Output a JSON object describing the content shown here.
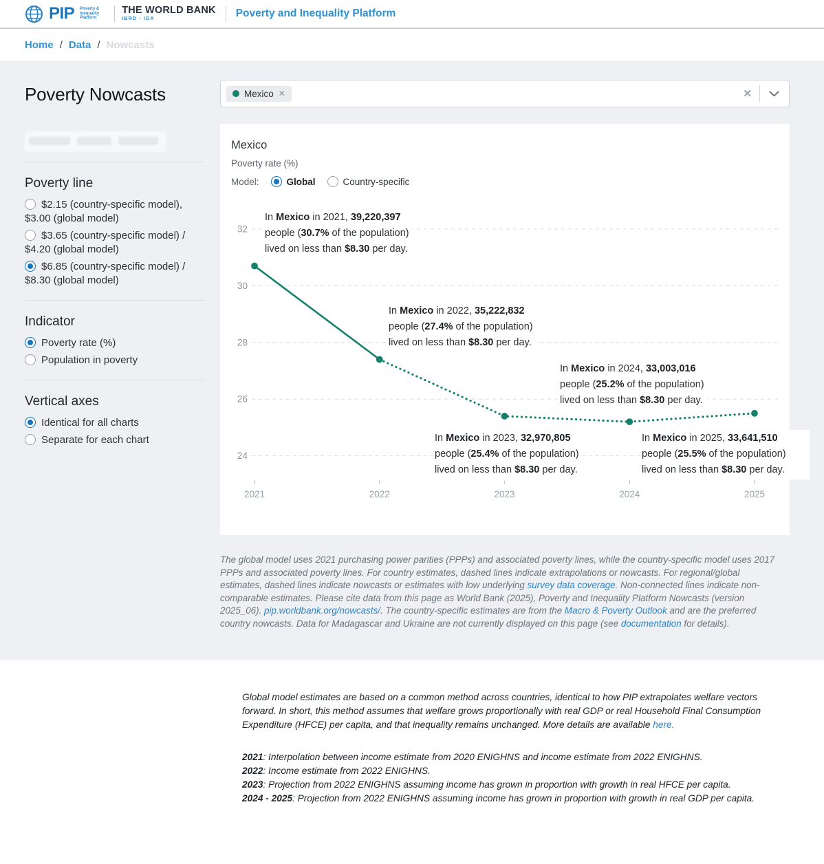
{
  "colors": {
    "accent_blue": "#1676bc",
    "link_blue": "#2e86c9",
    "teal": "#15806b",
    "page_bg": "#eef0f3"
  },
  "header": {
    "pip_logo": "PIP",
    "pip_micro": "Poverty & Inequality Platform",
    "world_bank": "THE WORLD BANK",
    "world_bank_sub": "IBRD - IDA",
    "platform_title": "Poverty and Inequality Platform"
  },
  "breadcrumb": {
    "items": [
      "Home",
      "Data"
    ],
    "separator": "/",
    "current": "Nowcasts"
  },
  "sidebar": {
    "title": "Poverty Nowcasts",
    "poverty_line": {
      "heading": "Poverty line",
      "options": [
        {
          "label": "$2.15 (country-specific model), $3.00 (global model)",
          "selected": false
        },
        {
          "label": "$3.65 (country-specific model) / $4.20 (global model)",
          "selected": false
        },
        {
          "label": "$6.85 (country-specific model) / $8.30 (global model)",
          "selected": true
        }
      ]
    },
    "indicator": {
      "heading": "Indicator",
      "options": [
        {
          "label": "Poverty rate (%)",
          "selected": true
        },
        {
          "label": "Population in poverty",
          "selected": false
        }
      ]
    },
    "vertical_axes": {
      "heading": "Vertical axes",
      "options": [
        {
          "label": "Identical for all charts",
          "selected": true
        },
        {
          "label": "Separate for each chart",
          "selected": false
        }
      ]
    }
  },
  "selector": {
    "tag": "Mexico",
    "tag_remove": "✕",
    "clear": "✕"
  },
  "chart_panel": {
    "title": "Mexico",
    "subtitle": "Poverty rate (%)",
    "model_label": "Model:",
    "model_options": [
      {
        "label": "Global",
        "selected": true
      },
      {
        "label": "Country-specific",
        "selected": false
      }
    ]
  },
  "chart_data": {
    "type": "line",
    "title": "Mexico",
    "ylabel": "Poverty rate (%)",
    "xlabel": "",
    "x": [
      2021,
      2022,
      2023,
      2024,
      2025
    ],
    "series": [
      {
        "name": "Mexico — global model",
        "values": [
          30.7,
          27.4,
          25.4,
          25.2,
          25.5
        ],
        "solid_segments": 1,
        "dashed_from": 2022
      }
    ],
    "yticks": [
      32,
      30,
      28,
      26,
      24
    ],
    "ylim": [
      23.2,
      32.6
    ],
    "grid": "dashed-horizontal",
    "legend_position": "none",
    "line_color": "#15806b",
    "annotations": [
      {
        "year": "2021",
        "people": "39,220,397",
        "percent": "30.7%",
        "threshold": "$8.30",
        "lines": [
          [
            {
              "t": "In "
            },
            {
              "t": "Mexico",
              "b": 1
            },
            {
              "t": " in 2021, "
            },
            {
              "t": "39,220,397",
              "b": 1
            }
          ],
          [
            {
              "t": "people ("
            },
            {
              "t": "30.7%",
              "b": 1
            },
            {
              "t": " of the population)"
            }
          ],
          [
            {
              "t": "lived on less than "
            },
            {
              "t": "$8.30",
              "b": 1
            },
            {
              "t": " per day."
            }
          ]
        ]
      },
      {
        "year": "2022",
        "people": "35,222,832",
        "percent": "27.4%",
        "threshold": "$8.30",
        "lines": [
          [
            {
              "t": "In "
            },
            {
              "t": "Mexico",
              "b": 1
            },
            {
              "t": " in 2022, "
            },
            {
              "t": "35,222,832",
              "b": 1
            }
          ],
          [
            {
              "t": "people ("
            },
            {
              "t": "27.4%",
              "b": 1
            },
            {
              "t": " of the population)"
            }
          ],
          [
            {
              "t": "lived on less than "
            },
            {
              "t": "$8.30",
              "b": 1
            },
            {
              "t": " per day."
            }
          ]
        ]
      },
      {
        "year": "2024",
        "people": "33,003,016",
        "percent": "25.2%",
        "threshold": "$8.30",
        "lines": [
          [
            {
              "t": "In "
            },
            {
              "t": "Mexico",
              "b": 1
            },
            {
              "t": " in 2024, "
            },
            {
              "t": "33,003,016",
              "b": 1
            }
          ],
          [
            {
              "t": "people ("
            },
            {
              "t": "25.2%",
              "b": 1
            },
            {
              "t": " of the population)"
            }
          ],
          [
            {
              "t": "lived on less than "
            },
            {
              "t": "$8.30",
              "b": 1
            },
            {
              "t": " per day."
            }
          ]
        ]
      },
      {
        "year": "2023",
        "people": "32,970,805",
        "percent": "25.4%",
        "threshold": "$8.30",
        "lines": [
          [
            {
              "t": "In "
            },
            {
              "t": "Mexico",
              "b": 1
            },
            {
              "t": " in 2023, "
            },
            {
              "t": "32,970,805",
              "b": 1
            }
          ],
          [
            {
              "t": "people ("
            },
            {
              "t": "25.4%",
              "b": 1
            },
            {
              "t": " of the population)"
            }
          ],
          [
            {
              "t": "lived on less than "
            },
            {
              "t": "$8.30",
              "b": 1
            },
            {
              "t": " per day."
            }
          ]
        ]
      },
      {
        "year": "2025",
        "people": "33,641,510",
        "percent": "25.5%",
        "threshold": "$8.30",
        "lines": [
          [
            {
              "t": "In "
            },
            {
              "t": "Mexico",
              "b": 1
            },
            {
              "t": " in 2025, "
            },
            {
              "t": "33,641,510",
              "b": 1
            }
          ],
          [
            {
              "t": "people ("
            },
            {
              "t": "25.5%",
              "b": 1
            },
            {
              "t": " of the population)"
            }
          ],
          [
            {
              "t": "lived on less than "
            },
            {
              "t": "$8.30",
              "b": 1
            },
            {
              "t": " per day."
            }
          ]
        ]
      }
    ]
  },
  "footnote_segments": [
    {
      "t": "The global model uses 2021 purchasing power parities (PPPs) and associated poverty lines, while the country-specific model uses 2017 PPPs and associated poverty lines. For country estimates, dashed lines indicate extrapolations or nowcasts. For regional/global estimates, dashed lines indicate nowcasts or estimates with low underlying "
    },
    {
      "t": "survey data coverage",
      "link": 1
    },
    {
      "t": ". Non-connected lines indicate non-comparable estimates. Please cite data from this page as World Bank (2025), Poverty and Inequality Platform Nowcasts (version 2025_06). "
    },
    {
      "t": "pip.worldbank.org/nowcasts/",
      "link": 1
    },
    {
      "t": ". The country-specific estimates are from the "
    },
    {
      "t": "Macro & Poverty Outlook",
      "link": 1
    },
    {
      "t": " and are the preferred country nowcasts. Data for Madagascar and Ukraine are not currently displayed on this page (see "
    },
    {
      "t": "documentation",
      "link": 1
    },
    {
      "t": " for details)."
    }
  ],
  "bottom": {
    "paragraph_segments": [
      {
        "t": "Global model estimates are based on a common method across countries, identical to how PIP extrapolates welfare vectors forward. In short, this method assumes that welfare grows proportionally with real GDP or real Household Final Consumption Expenditure (HFCE) per capita, and that inequality remains unchanged. More details are available "
      },
      {
        "t": "here.",
        "link": 1
      }
    ],
    "method_notes": [
      {
        "year": "2021",
        "text": ": Interpolation between income estimate from 2020 ENIGHNS and income estimate from 2022 ENIGHNS."
      },
      {
        "year": "2022",
        "text": ": Income estimate from 2022 ENIGHNS."
      },
      {
        "year": "2023",
        "text": ": Projection from 2022 ENIGHNS assuming income has grown in proportion with growth in real HFCE per capita."
      },
      {
        "year": "2024 - 2025",
        "text": ": Projection from 2022 ENIGHNS assuming income has grown in proportion with growth in real GDP per capita."
      }
    ]
  }
}
